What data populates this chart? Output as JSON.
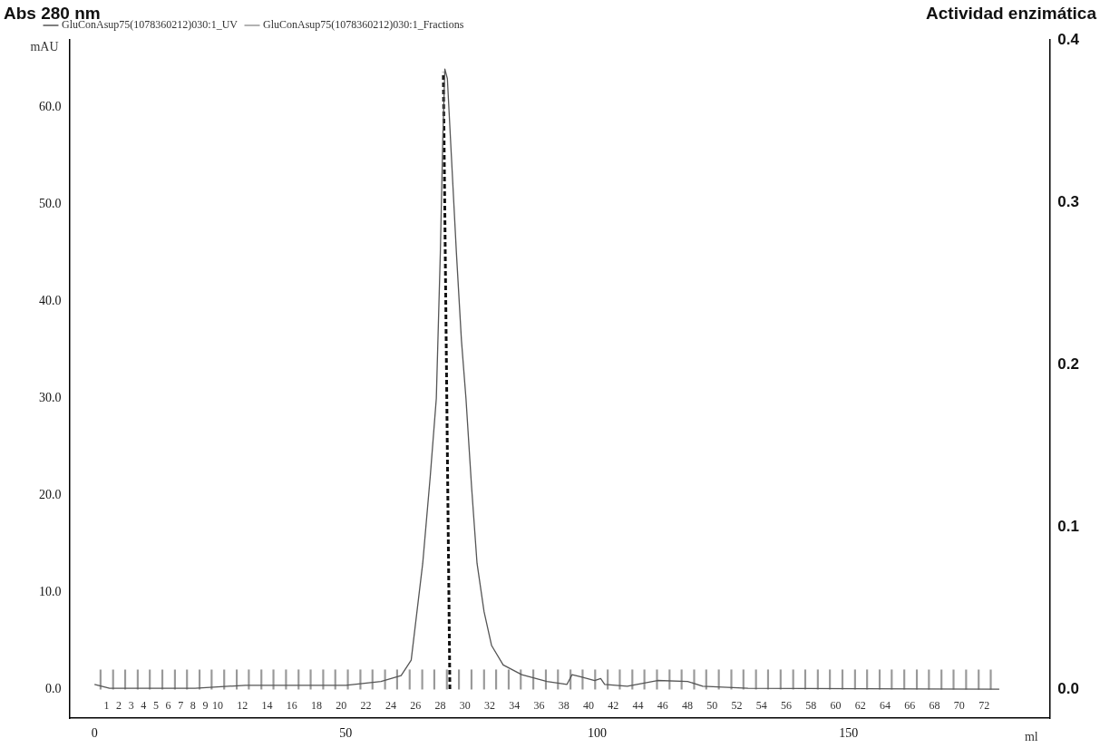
{
  "chart_data": {
    "type": "line",
    "ylabel": "Abs 280 nm",
    "y2label": "Actividad enzimática",
    "xlabel": "ml",
    "annotations": [
      "mAU"
    ],
    "xlim": [
      -5,
      190
    ],
    "xticks": [
      0,
      50,
      100,
      150
    ],
    "x2lim": [
      -2.0,
      77.3
    ],
    "x2ticks": [
      1,
      2,
      3,
      4,
      5,
      6,
      7,
      8,
      9,
      10,
      12,
      14,
      16,
      18,
      20,
      22,
      24,
      26,
      28,
      30,
      32,
      34,
      36,
      38,
      40,
      42,
      44,
      46,
      48,
      50,
      52,
      54,
      56,
      58,
      60,
      62,
      64,
      66,
      68,
      70,
      72
    ],
    "ylim": [
      -3,
      67
    ],
    "yticks": [
      {
        "value": 0,
        "label": "0.0"
      },
      {
        "value": 10,
        "label": "10.0"
      },
      {
        "value": 20,
        "label": "20.0"
      },
      {
        "value": 30,
        "label": "30.0"
      },
      {
        "value": 40,
        "label": "40.0"
      },
      {
        "value": 50,
        "label": "50.0"
      },
      {
        "value": 60,
        "label": "60.0"
      }
    ],
    "y2lim": [
      -0.018,
      0.4
    ],
    "y2ticks": [
      {
        "value": 0,
        "label": "0.0"
      },
      {
        "value": 0.1,
        "label": "0.1"
      },
      {
        "value": 0.2,
        "label": "0.2"
      },
      {
        "value": 0.3,
        "label": "0.3"
      },
      {
        "value": 0.4,
        "label": "0.4"
      }
    ],
    "grid": false,
    "legend": "top",
    "line_style": "solid",
    "marker": "none",
    "series": [
      {
        "name": "GluConAsup75(1078360212)030:1_UV",
        "color": "#555555",
        "x": [
          0,
          3,
          20,
          30,
          50,
          57,
          61,
          63,
          65.3,
          66.8,
          68,
          68.8,
          69.3,
          69.7,
          70.2,
          71,
          72,
          73,
          73.9,
          75,
          76.1,
          77.5,
          79,
          81.3,
          85,
          90,
          94,
          95,
          96.5,
          99.5,
          100.7,
          101.5,
          106,
          112,
          118,
          121,
          130,
          180
        ],
        "values": [
          0.5,
          0.1,
          0.1,
          0.4,
          0.4,
          0.8,
          1.4,
          3,
          13,
          22,
          30,
          45,
          57,
          64,
          63,
          55,
          45,
          36,
          30,
          21,
          13,
          8,
          4.5,
          2.5,
          1.5,
          0.8,
          0.5,
          1.5,
          1.3,
          0.9,
          1.1,
          0.5,
          0.3,
          0.9,
          0.8,
          0.3,
          0.1,
          0
        ]
      },
      {
        "name": "GluConAsup75(1078360212)030:1_Fractions",
        "color": "#999999",
        "type": "bar",
        "x": [
          1.2,
          3.7,
          6.1,
          8.6,
          11.0,
          13.5,
          16.0,
          18.4,
          20.9,
          23.3,
          25.8,
          28.3,
          30.7,
          33.2,
          35.6,
          38.1,
          40.6,
          43.0,
          45.5,
          47.9,
          50.4,
          52.9,
          55.3,
          57.8,
          60.2,
          62.7,
          65.2,
          67.6,
          70.1,
          72.5,
          75.0,
          77.5,
          79.9,
          82.4,
          84.8,
          87.3,
          89.8,
          92.2,
          94.7,
          97.1,
          99.6,
          102.1,
          104.5,
          107.0,
          109.4,
          111.9,
          114.4,
          116.8,
          119.3,
          121.7,
          124.2,
          126.7,
          129.1,
          131.6,
          134.0,
          136.5,
          139.0,
          141.4,
          143.9,
          146.3,
          148.8,
          151.3,
          153.7,
          156.2,
          158.6,
          161.1,
          163.6,
          166.0,
          168.5,
          170.9,
          173.4,
          175.9,
          178.3
        ],
        "values": [
          2,
          2,
          2,
          2,
          2,
          2,
          2,
          2,
          2,
          2,
          2,
          2,
          2,
          2,
          2,
          2,
          2,
          2,
          2,
          2,
          2,
          2,
          2,
          2,
          2,
          2,
          2,
          2,
          2,
          2,
          2,
          2,
          2,
          2,
          2,
          2,
          2,
          2,
          2,
          2,
          2,
          2,
          2,
          2,
          2,
          2,
          2,
          2,
          2,
          2,
          2,
          2,
          2,
          2,
          2,
          2,
          2,
          2,
          2,
          2,
          2,
          2,
          2,
          2,
          2,
          2,
          2,
          2,
          2,
          2,
          2,
          2,
          2
        ]
      },
      {
        "color": "#111111",
        "axis": "y2",
        "line_style": "dashed",
        "x": [
          70.7,
          69.4
        ],
        "values": [
          0,
          0.38
        ]
      }
    ]
  }
}
